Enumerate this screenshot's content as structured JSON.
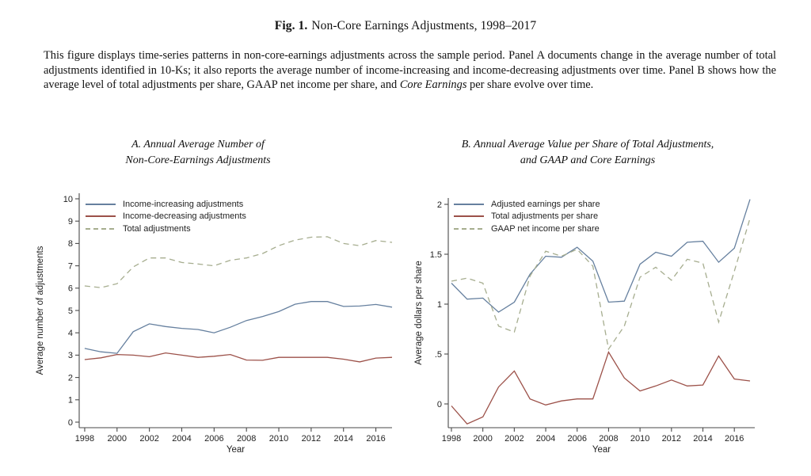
{
  "figure": {
    "title_label": "Fig. 1.",
    "title_text": "Non-Core Earnings Adjustments, 1998–2017",
    "caption_part1": "This figure displays time-series patterns in non-core-earnings adjustments across the sample period. Panel A documents change in the average number of total adjustments identified in 10-Ks; it also reports the average number of income-increasing and income-decreasing adjustments over time. Panel B shows how the average level of total adjustments per share, GAAP net income per share, and ",
    "caption_italic": "Core Earnings",
    "caption_part2": " per share evolve over time."
  },
  "colors": {
    "blue_line": "#66809f",
    "red_line": "#9c5149",
    "dashed_line": "#a6ad8f",
    "axis": "#4a4a4a",
    "text": "#1f1f1f"
  },
  "chart_data": [
    {
      "type": "line",
      "panel": "A",
      "title_line1": "A. Annual Average Number of",
      "title_line2": "Non-Core-Earnings Adjustments",
      "xlabel": "Year",
      "ylabel": "Average number of adjustments",
      "grid": false,
      "legend_position": "top-left-inside",
      "xlim": [
        1998,
        2017
      ],
      "ylim": [
        0,
        10
      ],
      "x": [
        1998,
        1999,
        2000,
        2001,
        2002,
        2003,
        2004,
        2005,
        2006,
        2007,
        2008,
        2009,
        2010,
        2011,
        2012,
        2013,
        2014,
        2015,
        2016,
        2017
      ],
      "xticks": [
        1998,
        2000,
        2002,
        2004,
        2006,
        2008,
        2010,
        2012,
        2014,
        2016
      ],
      "yticks": [
        {
          "v": 0,
          "label": "0"
        },
        {
          "v": 1,
          "label": "1"
        },
        {
          "v": 2,
          "label": "2"
        },
        {
          "v": 3,
          "label": "3"
        },
        {
          "v": 4,
          "label": "4"
        },
        {
          "v": 5,
          "label": "5"
        },
        {
          "v": 6,
          "label": "6"
        },
        {
          "v": 7,
          "label": "7"
        },
        {
          "v": 8,
          "label": "8"
        },
        {
          "v": 9,
          "label": "9"
        },
        {
          "v": 10,
          "label": "10"
        }
      ],
      "series": [
        {
          "name": "Income-increasing adjustments",
          "style": "solid",
          "color": "#66809f",
          "values": [
            3.3,
            3.15,
            3.08,
            4.05,
            4.4,
            4.28,
            4.2,
            4.15,
            4.0,
            4.25,
            4.55,
            4.73,
            4.95,
            5.28,
            5.4,
            5.4,
            5.18,
            5.2,
            5.27,
            5.15
          ]
        },
        {
          "name": "Income-decreasing adjustments",
          "style": "solid",
          "color": "#9c5149",
          "values": [
            2.8,
            2.88,
            3.03,
            3.0,
            2.93,
            3.1,
            3.0,
            2.9,
            2.95,
            3.03,
            2.78,
            2.77,
            2.9,
            2.9,
            2.9,
            2.9,
            2.82,
            2.7,
            2.87,
            2.9
          ]
        },
        {
          "name": "Total adjustments",
          "style": "dashed",
          "color": "#a6ad8f",
          "values": [
            6.1,
            6.02,
            6.2,
            6.95,
            7.35,
            7.35,
            7.15,
            7.08,
            7.0,
            7.25,
            7.35,
            7.55,
            7.9,
            8.15,
            8.28,
            8.3,
            8.0,
            7.9,
            8.13,
            8.05
          ]
        }
      ]
    },
    {
      "type": "line",
      "panel": "B",
      "title_line1": "B. Annual Average Value per Share of Total Adjustments,",
      "title_line2": "and GAAP and Core Earnings",
      "xlabel": "Year",
      "ylabel": "Average dollars per share",
      "grid": false,
      "legend_position": "top-left-inside",
      "xlim": [
        1998,
        2017
      ],
      "ylim": [
        -0.25,
        2.1
      ],
      "x": [
        1998,
        1999,
        2000,
        2001,
        2002,
        2003,
        2004,
        2005,
        2006,
        2007,
        2008,
        2009,
        2010,
        2011,
        2012,
        2013,
        2014,
        2015,
        2016,
        2017
      ],
      "xticks": [
        1998,
        2000,
        2002,
        2004,
        2006,
        2008,
        2010,
        2012,
        2014,
        2016
      ],
      "yticks": [
        {
          "v": 0,
          "label": "0"
        },
        {
          "v": 0.5,
          "label": ".5"
        },
        {
          "v": 1,
          "label": "1"
        },
        {
          "v": 1.5,
          "label": "1.5"
        },
        {
          "v": 2,
          "label": "2"
        }
      ],
      "series": [
        {
          "name": "Adjusted earnings per share",
          "style": "solid",
          "color": "#66809f",
          "values": [
            1.21,
            1.05,
            1.06,
            0.92,
            1.02,
            1.3,
            1.48,
            1.47,
            1.57,
            1.43,
            1.02,
            1.03,
            1.4,
            1.52,
            1.48,
            1.62,
            1.63,
            1.42,
            1.56,
            2.05
          ]
        },
        {
          "name": "Total adjustments per share",
          "style": "solid",
          "color": "#9c5149",
          "values": [
            -0.02,
            -0.2,
            -0.13,
            0.17,
            0.33,
            0.05,
            -0.01,
            0.03,
            0.05,
            0.05,
            0.52,
            0.26,
            0.13,
            0.18,
            0.24,
            0.18,
            0.19,
            0.48,
            0.25,
            0.23
          ]
        },
        {
          "name": "GAAP net income per share",
          "style": "dashed",
          "color": "#a6ad8f",
          "values": [
            1.23,
            1.26,
            1.21,
            0.78,
            0.72,
            1.28,
            1.53,
            1.48,
            1.55,
            1.38,
            0.55,
            0.78,
            1.27,
            1.37,
            1.24,
            1.45,
            1.41,
            0.82,
            1.33,
            1.86
          ]
        }
      ]
    }
  ]
}
